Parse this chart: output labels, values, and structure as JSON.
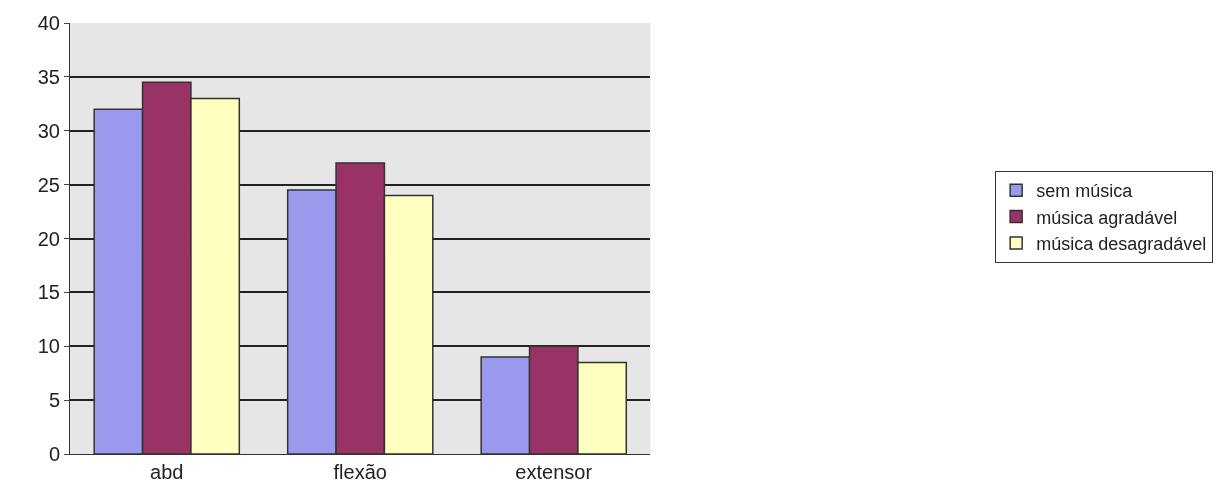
{
  "chart_data": {
    "type": "bar",
    "categories": [
      "abd",
      "flexão",
      "extensor"
    ],
    "series": [
      {
        "name": "sem música",
        "color": "#9999ee",
        "values": [
          32,
          24.5,
          9
        ]
      },
      {
        "name": "música agradável",
        "color": "#993366",
        "values": [
          34.5,
          27,
          10
        ]
      },
      {
        "name": "música desagradável",
        "color": "#ffffc0",
        "values": [
          33,
          24,
          8.5
        ]
      }
    ],
    "ylim": [
      0,
      40
    ],
    "yticks": [
      0,
      5,
      10,
      15,
      20,
      25,
      30,
      35,
      40
    ],
    "grid": "y",
    "legend": "right"
  }
}
